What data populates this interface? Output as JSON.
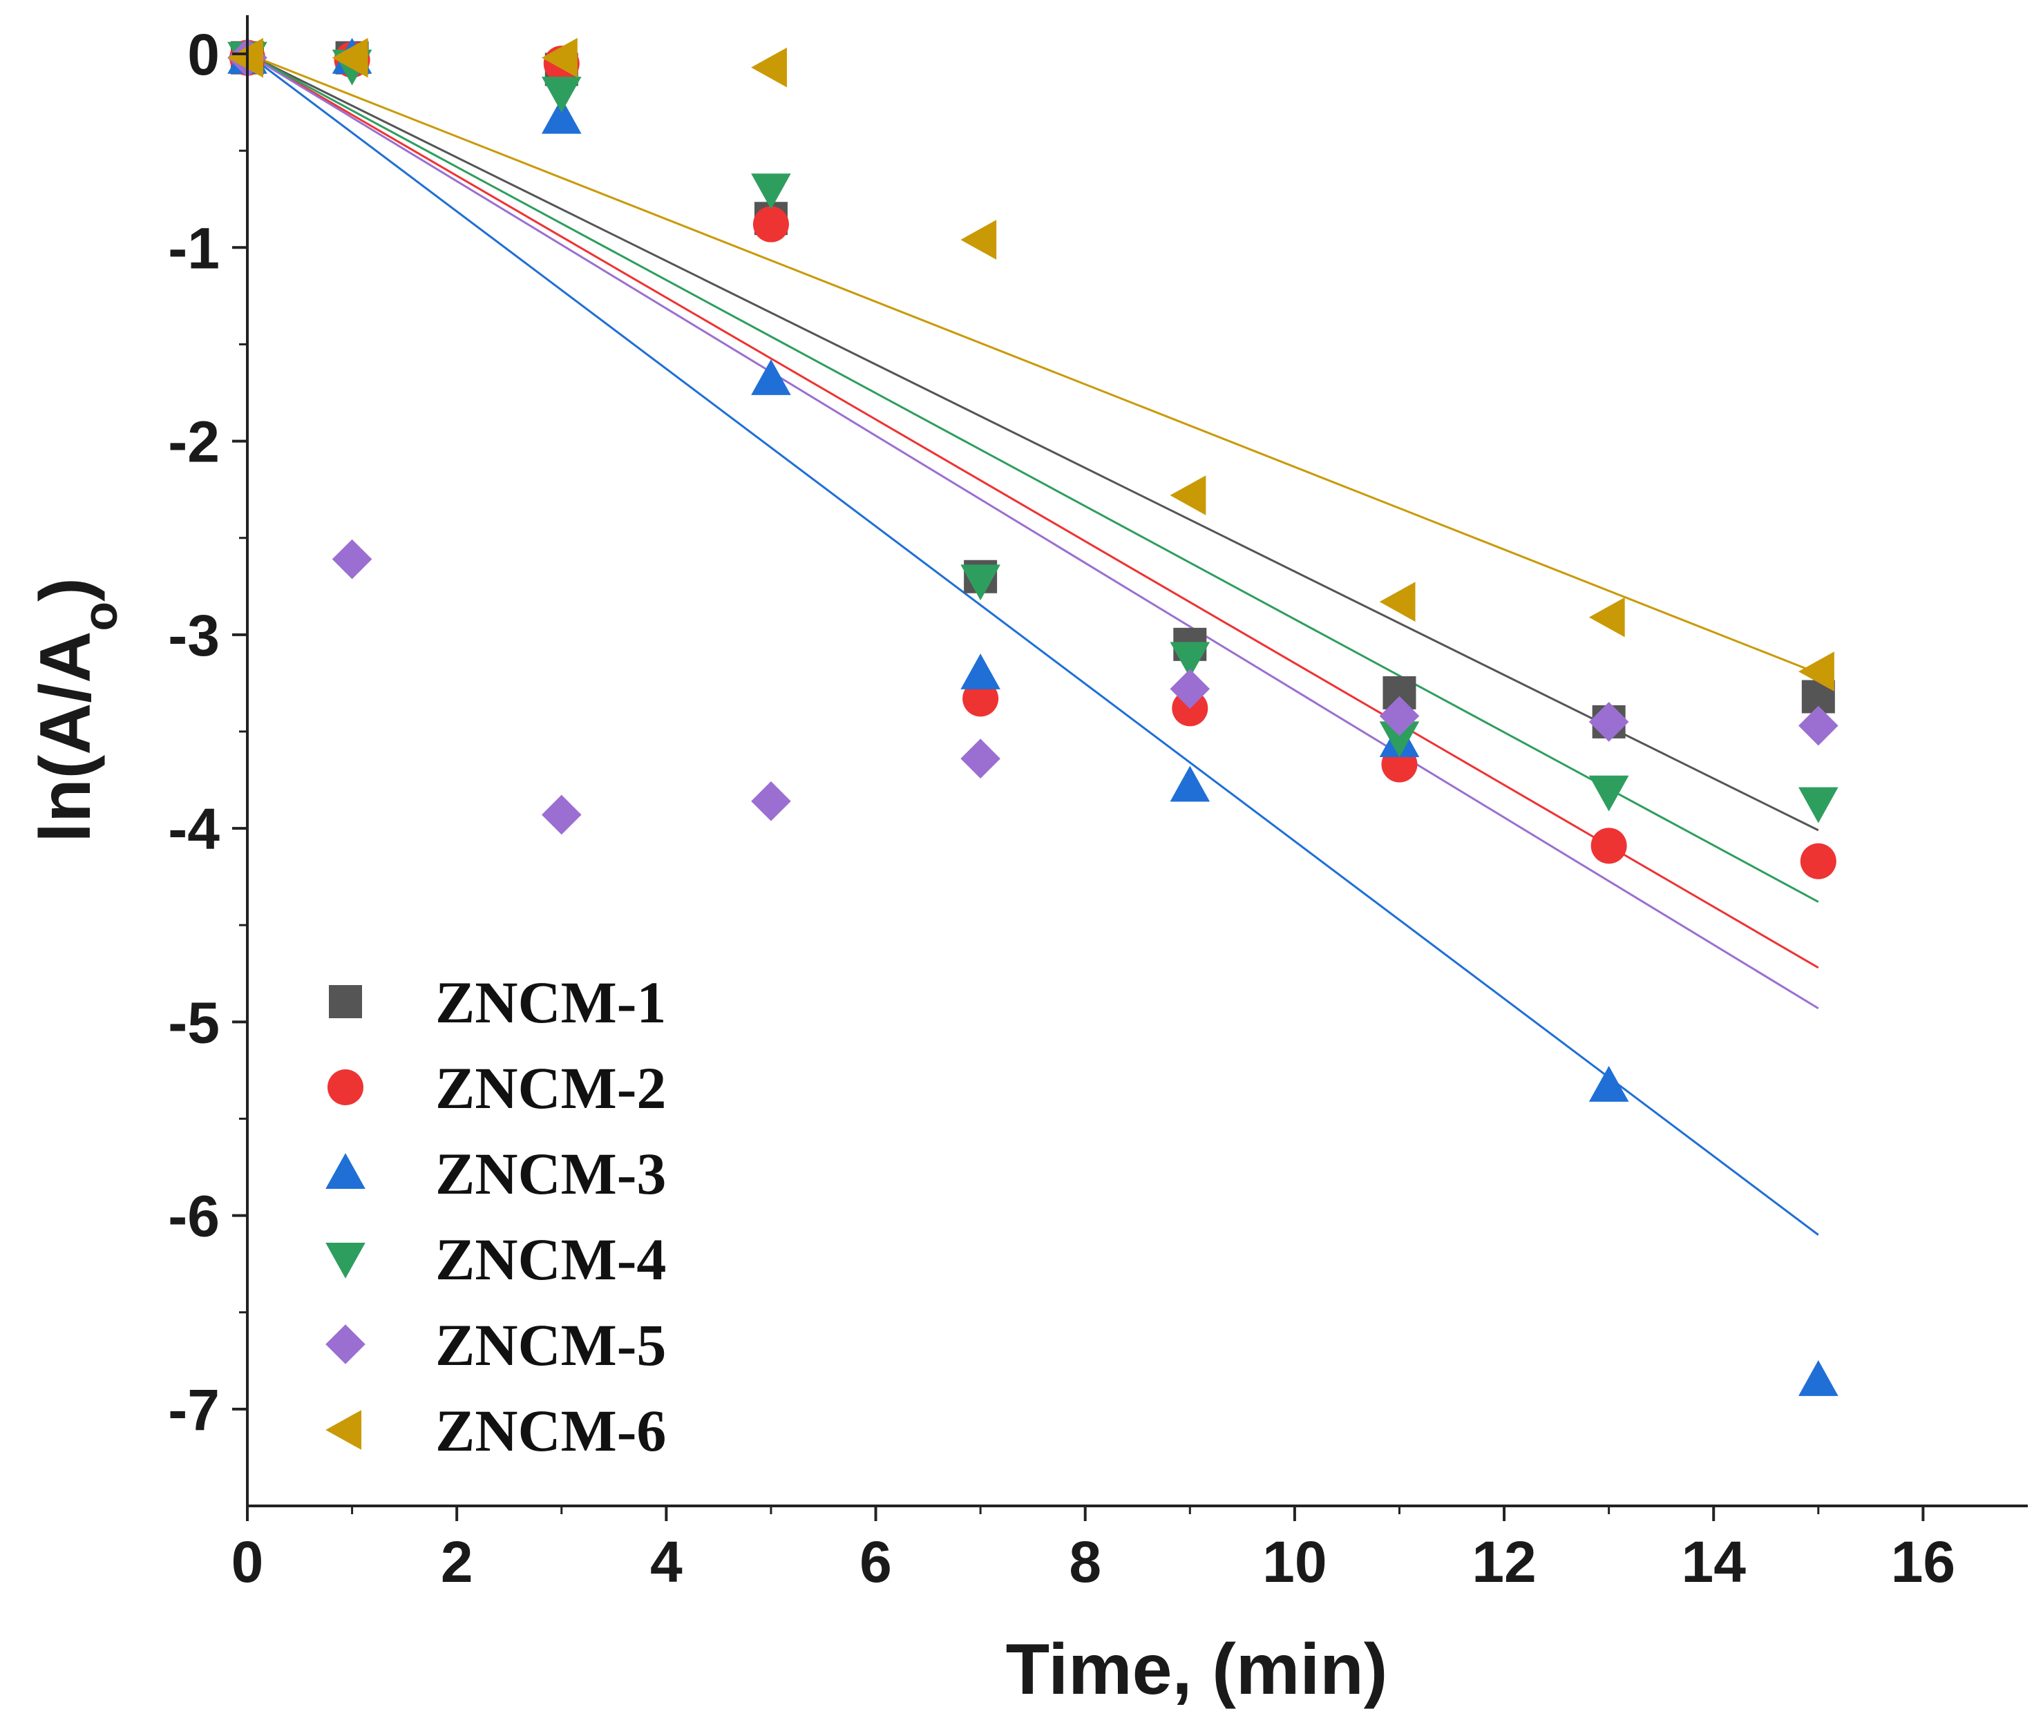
{
  "chart_data": {
    "type": "scatter",
    "xlabel": "Time, (min)",
    "ylabel": {
      "main": "ln(A/A",
      "subscript": "o",
      "end": ")"
    },
    "xlim": [
      0,
      17
    ],
    "ylim": [
      -7.5,
      0.2
    ],
    "xticks": [
      0,
      2,
      4,
      6,
      8,
      10,
      12,
      14,
      16
    ],
    "yticks": [
      0,
      -1,
      -2,
      -3,
      -4,
      -5,
      -6,
      -7
    ],
    "legend_position": "bottom-left",
    "series": [
      {
        "name": "ZNCM-1",
        "marker": "square",
        "color": "#555555",
        "x": [
          0,
          1,
          3,
          5,
          7,
          9,
          11,
          13,
          15
        ],
        "y": [
          -0.02,
          -0.02,
          -0.08,
          -0.85,
          -2.7,
          -3.05,
          -3.3,
          -3.45,
          -3.32
        ],
        "fit": {
          "x": [
            0,
            15
          ],
          "y": [
            0,
            -4.01
          ]
        }
      },
      {
        "name": "ZNCM-2",
        "marker": "circle",
        "color": "#ee3333",
        "x": [
          0,
          1,
          3,
          5,
          7,
          9,
          11,
          13,
          15
        ],
        "y": [
          -0.02,
          -0.03,
          -0.05,
          -0.88,
          -3.33,
          -3.38,
          -3.67,
          -4.09,
          -4.17
        ],
        "fit": {
          "x": [
            0,
            15
          ],
          "y": [
            0,
            -4.72
          ]
        }
      },
      {
        "name": "ZNCM-3",
        "marker": "triangle-up",
        "color": "#1f6fd6",
        "x": [
          0,
          1,
          3,
          5,
          7,
          9,
          11,
          13,
          15
        ],
        "y": [
          -0.02,
          -0.02,
          -0.33,
          -1.68,
          -3.2,
          -3.78,
          -3.55,
          -5.33,
          -6.85
        ],
        "fit": {
          "x": [
            0,
            15
          ],
          "y": [
            0,
            -6.1
          ]
        }
      },
      {
        "name": "ZNCM-4",
        "marker": "triangle-down",
        "color": "#2e9e5e",
        "x": [
          0,
          1,
          3,
          5,
          7,
          9,
          11,
          13,
          15
        ],
        "y": [
          -0.02,
          -0.06,
          -0.2,
          -0.7,
          -2.72,
          -3.12,
          -3.53,
          -3.81,
          -3.87
        ],
        "fit": {
          "x": [
            0,
            15
          ],
          "y": [
            0,
            -4.38
          ]
        }
      },
      {
        "name": "ZNCM-5",
        "marker": "diamond",
        "color": "#9b6fd1",
        "x": [
          0,
          1,
          3,
          5,
          7,
          9,
          11,
          13,
          15
        ],
        "y": [
          -0.02,
          -2.61,
          -3.93,
          -3.86,
          -3.64,
          -3.28,
          -3.42,
          -3.45,
          -3.47
        ],
        "fit": {
          "x": [
            0,
            15
          ],
          "y": [
            0,
            -4.93
          ]
        }
      },
      {
        "name": "ZNCM-6",
        "marker": "triangle-left",
        "color": "#c99a06",
        "x": [
          0,
          1,
          3,
          5,
          7,
          9,
          11,
          13,
          15
        ],
        "y": [
          -0.02,
          -0.02,
          -0.02,
          -0.07,
          -0.96,
          -2.28,
          -2.83,
          -2.91,
          -3.19
        ],
        "fit": {
          "x": [
            0,
            15
          ],
          "y": [
            0,
            -3.2
          ]
        }
      }
    ]
  }
}
